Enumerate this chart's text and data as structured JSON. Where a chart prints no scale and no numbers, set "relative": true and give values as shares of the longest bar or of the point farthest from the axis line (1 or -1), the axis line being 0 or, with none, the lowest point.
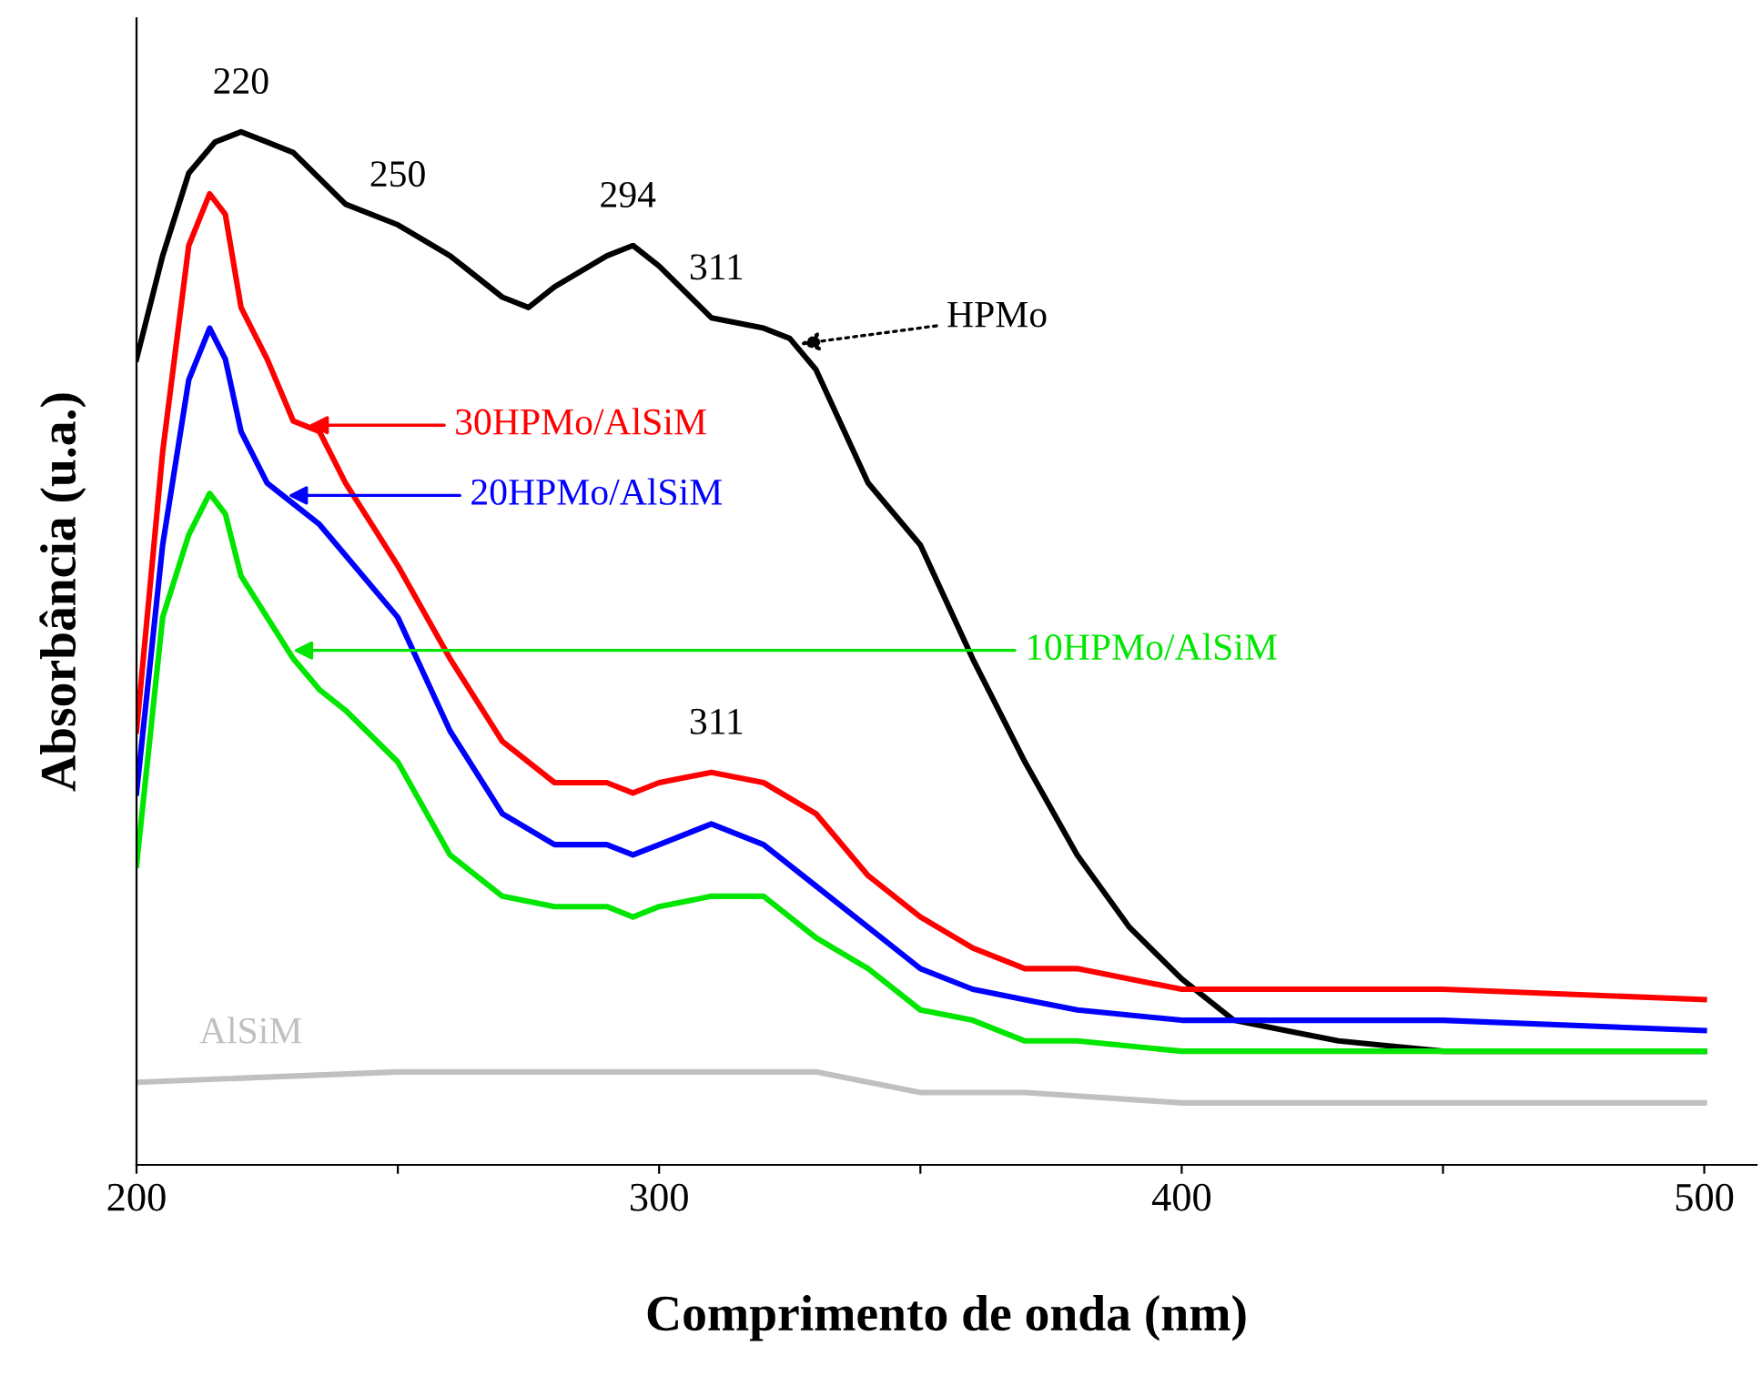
{
  "chart_data": {
    "type": "line",
    "relative": true,
    "xlabel": "Comprimento de onda (nm)",
    "ylabel": "Absorbância (u.a.)",
    "xlim": [
      200,
      510
    ],
    "xticks": [
      200,
      {
        "value": 250,
        "label": null
      },
      300,
      {
        "value": 350,
        "label": null
      },
      400,
      {
        "value": 450,
        "label": null
      },
      500
    ],
    "grid": false,
    "legend": "top",
    "marker": "none",
    "line_style": "solid",
    "series": [
      {
        "name": "HPMo",
        "color": "#000000",
        "x": [
          200,
          205,
          210,
          215,
          220,
          225,
          230,
          240,
          250,
          260,
          270,
          275,
          280,
          290,
          295,
          300,
          310,
          320,
          325,
          330,
          340,
          350,
          360,
          370,
          380,
          390,
          400,
          410,
          420,
          430,
          450,
          475,
          500
        ],
        "values": [
          0.78,
          0.88,
          0.96,
          0.99,
          1.0,
          0.99,
          0.98,
          0.93,
          0.91,
          0.88,
          0.84,
          0.83,
          0.85,
          0.88,
          0.89,
          0.87,
          0.82,
          0.81,
          0.8,
          0.77,
          0.66,
          0.6,
          0.49,
          0.39,
          0.3,
          0.23,
          0.18,
          0.14,
          0.13,
          0.12,
          0.11,
          0.11,
          0.11
        ]
      },
      {
        "name": "30HPMo/AlSiM",
        "color": "#ff0000",
        "x": [
          200,
          205,
          210,
          214,
          217,
          220,
          225,
          230,
          235,
          240,
          245,
          250,
          260,
          270,
          280,
          290,
          295,
          300,
          310,
          320,
          330,
          340,
          350,
          360,
          370,
          380,
          400,
          450,
          500
        ],
        "values": [
          0.42,
          0.69,
          0.89,
          0.94,
          0.92,
          0.83,
          0.78,
          0.72,
          0.71,
          0.66,
          0.62,
          0.58,
          0.49,
          0.41,
          0.37,
          0.37,
          0.36,
          0.37,
          0.38,
          0.37,
          0.34,
          0.28,
          0.24,
          0.21,
          0.19,
          0.19,
          0.17,
          0.17,
          0.16
        ]
      },
      {
        "name": "20HPMo/AlSiM",
        "color": "#0000ff",
        "x": [
          200,
          205,
          210,
          214,
          217,
          220,
          225,
          230,
          235,
          240,
          250,
          260,
          270,
          280,
          290,
          295,
          300,
          310,
          320,
          330,
          340,
          350,
          360,
          370,
          380,
          400,
          450,
          500
        ],
        "values": [
          0.36,
          0.6,
          0.76,
          0.81,
          0.78,
          0.71,
          0.66,
          0.64,
          0.62,
          0.59,
          0.53,
          0.42,
          0.34,
          0.31,
          0.31,
          0.3,
          0.31,
          0.33,
          0.31,
          0.27,
          0.23,
          0.19,
          0.17,
          0.16,
          0.15,
          0.14,
          0.14,
          0.13
        ]
      },
      {
        "name": "10HPMo/AlSiM",
        "color": "#00e600",
        "x": [
          200,
          205,
          210,
          214,
          217,
          220,
          225,
          230,
          235,
          240,
          250,
          260,
          270,
          280,
          290,
          295,
          300,
          310,
          320,
          330,
          340,
          350,
          360,
          370,
          380,
          400,
          450,
          500
        ],
        "values": [
          0.29,
          0.53,
          0.61,
          0.65,
          0.63,
          0.57,
          0.53,
          0.49,
          0.46,
          0.44,
          0.39,
          0.3,
          0.26,
          0.25,
          0.25,
          0.24,
          0.25,
          0.26,
          0.26,
          0.22,
          0.19,
          0.15,
          0.14,
          0.12,
          0.12,
          0.11,
          0.11,
          0.11
        ]
      },
      {
        "name": "AlSiM",
        "color": "#c0c0c0",
        "x": [
          200,
          250,
          300,
          330,
          350,
          370,
          400,
          500
        ],
        "values": [
          0.08,
          0.09,
          0.09,
          0.09,
          0.07,
          0.07,
          0.06,
          0.06
        ]
      }
    ],
    "annotations": [
      {
        "text": "220",
        "x": 220,
        "y": 1.0
      },
      {
        "text": "250",
        "x": 250,
        "y": 0.91
      },
      {
        "text": "294",
        "x": 294,
        "y": 0.89
      },
      {
        "text": "311",
        "x": 311,
        "y": 0.82
      },
      {
        "text": "311",
        "x": 311,
        "y": 0.38
      }
    ]
  }
}
